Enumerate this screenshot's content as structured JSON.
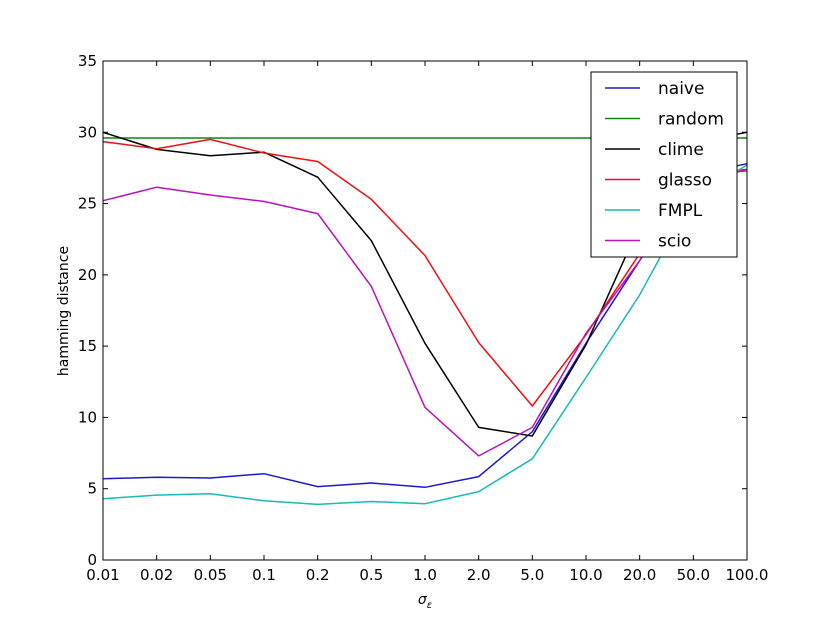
{
  "chart_data": {
    "type": "line",
    "title": "",
    "xlabel": "σ_ε",
    "ylabel": "hamming distance",
    "categories": [
      "0.01",
      "0.02",
      "0.05",
      "0.1",
      "0.2",
      "0.5",
      "1.0",
      "2.0",
      "5.0",
      "10.0",
      "20.0",
      "50.0",
      "100.0"
    ],
    "ylim": [
      0,
      35
    ],
    "yticks": [
      "0",
      "5",
      "10",
      "15",
      "20",
      "25",
      "30",
      "35"
    ],
    "grid": false,
    "legend_position": "top-right",
    "series": [
      {
        "name": "naive",
        "color": "#1a1acc",
        "values": [
          5.7,
          5.8,
          5.75,
          6.05,
          5.15,
          5.4,
          5.1,
          5.85,
          9.0,
          15.2,
          21.0,
          27.0,
          27.8
        ]
      },
      {
        "name": "random",
        "color": "#0a8a0a",
        "values": [
          29.6,
          29.6,
          29.6,
          29.6,
          29.6,
          29.6,
          29.6,
          29.6,
          29.6,
          29.6,
          29.6,
          29.6,
          29.6
        ]
      },
      {
        "name": "clime",
        "color": "#000000",
        "values": [
          30.0,
          28.8,
          28.35,
          28.6,
          26.85,
          22.4,
          15.2,
          9.3,
          8.7,
          15.1,
          23.5,
          29.3,
          30.0
        ]
      },
      {
        "name": "glasso",
        "color": "#ee1111",
        "values": [
          29.35,
          28.85,
          29.5,
          28.55,
          27.95,
          25.3,
          21.35,
          15.25,
          10.8,
          15.8,
          21.5,
          27.0,
          27.4
        ]
      },
      {
        "name": "FMPL",
        "color": "#1ab8b8",
        "values": [
          4.3,
          4.55,
          4.65,
          4.15,
          3.9,
          4.1,
          3.95,
          4.8,
          7.1,
          12.8,
          18.6,
          25.5,
          27.7
        ]
      },
      {
        "name": "scio",
        "color": "#bb11bb",
        "values": [
          25.2,
          26.15,
          25.6,
          25.15,
          24.3,
          19.2,
          10.7,
          7.3,
          9.3,
          15.9,
          21.0,
          26.9,
          27.3
        ]
      }
    ]
  }
}
